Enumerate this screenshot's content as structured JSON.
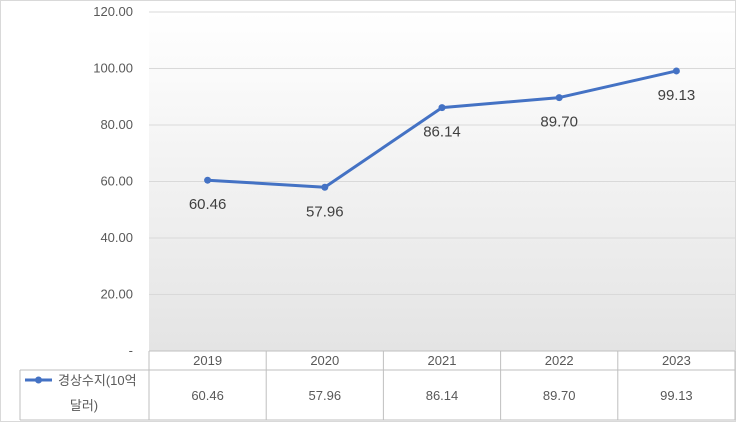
{
  "chart_data": {
    "type": "line",
    "categories": [
      "2019",
      "2020",
      "2021",
      "2022",
      "2023"
    ],
    "series": [
      {
        "name": "경상수지(10억 달러)",
        "name_lines": [
          "경상수지(10억",
          "달러)"
        ],
        "values": [
          60.46,
          57.96,
          86.14,
          89.7,
          99.13
        ],
        "value_labels": [
          "60.46",
          "57.96",
          "86.14",
          "89.70",
          "99.13"
        ],
        "color": "#4472c4"
      }
    ],
    "y_ticks": [
      "120.00",
      "100.00",
      "80.00",
      "60.00",
      "40.00",
      "20.00",
      "-"
    ],
    "y_tick_values": [
      120,
      100,
      80,
      60,
      40,
      20,
      0
    ],
    "ylim": [
      0,
      120
    ],
    "grid": true,
    "data_table": true,
    "legend": "data-table"
  }
}
